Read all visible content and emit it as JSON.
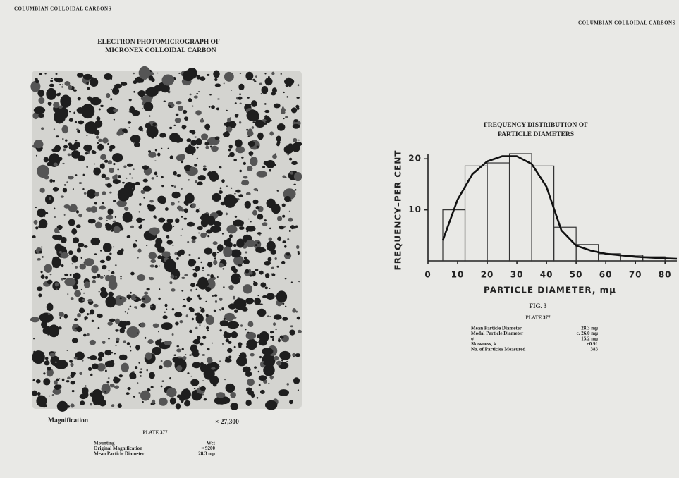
{
  "header": {
    "left": "COLUMBIAN COLLOIDAL CARBONS",
    "right": "COLUMBIAN COLLOIDAL CARBONS"
  },
  "micrograph": {
    "title": [
      "ELECTRON PHOTOMICROGRAPH OF",
      "MICRONEX COLLOIDAL CARBON"
    ],
    "magnification_label": "Magnification",
    "magnification": "× 27,300",
    "plate": "PLATE 377",
    "rows": [
      [
        "Mounting",
        "Wet"
      ],
      [
        "Original Magnification",
        "× 9200"
      ],
      [
        "Mean Particle Diameter",
        "28.3 mμ"
      ]
    ]
  },
  "figure": {
    "type": "histogram",
    "title": [
      "FREQUENCY DISTRIBUTION OF",
      "PARTICLE DIAMETERS"
    ],
    "ylabel": "FREQUENCY–PER CENT",
    "xlabel": "PARTICLE DIAMETER, mμ",
    "bins": [
      5,
      12.5,
      20,
      27.5,
      35,
      42.5,
      50,
      57.5,
      65,
      72.5,
      80
    ],
    "values": [
      10,
      18.6,
      19.2,
      21,
      18.6,
      6.6,
      3.2,
      1.4,
      1.1,
      0.8
    ],
    "curve": {
      "x": [
        5,
        10,
        15,
        20,
        25,
        30,
        35,
        40,
        45,
        50,
        55,
        60,
        70,
        80,
        84
      ],
      "y": [
        4,
        12,
        17,
        19.5,
        20.5,
        20.5,
        19,
        14.5,
        6,
        3,
        2,
        1.4,
        0.8,
        0.5,
        0.4
      ]
    },
    "xlim": [
      0,
      84
    ],
    "ylim": [
      0,
      21
    ],
    "xticks": [
      0,
      10,
      20,
      30,
      40,
      50,
      60,
      70,
      80
    ],
    "yticks": [
      10,
      20
    ],
    "caption": "FIG. 3",
    "plate": "PLATE 377",
    "rows": [
      [
        "Mean Particle Diameter",
        "28.3 mμ"
      ],
      [
        "Modal Particle Diameter",
        "c. 26.0 mμ"
      ],
      [
        "σ",
        "15.2 mμ"
      ],
      [
        "Skewness, k",
        "+0.91"
      ],
      [
        "No. of Particles Measured",
        "383"
      ]
    ]
  }
}
